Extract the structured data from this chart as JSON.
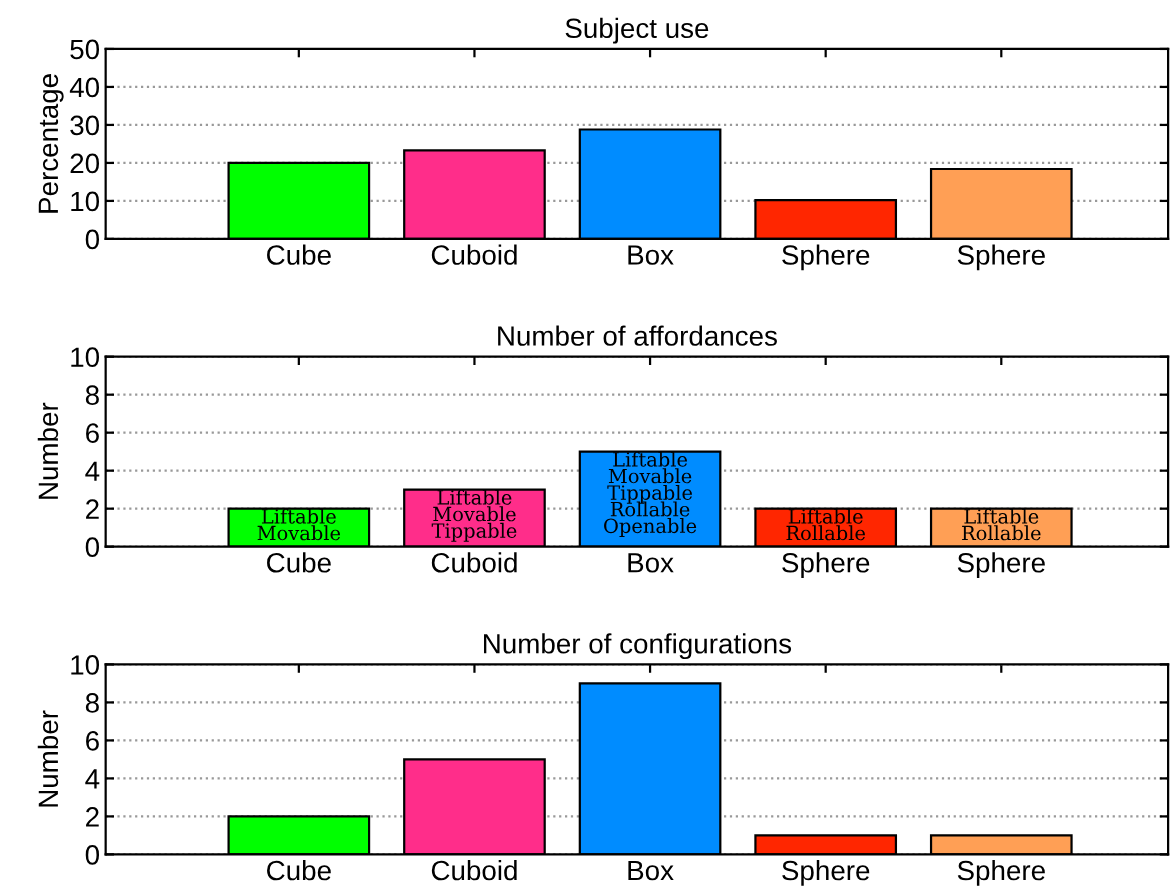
{
  "chart_data": [
    {
      "type": "bar",
      "title": "Subject use",
      "ylabel": "Percentage",
      "categories": [
        "Cube",
        "Cuboid",
        "Box",
        "Sphere",
        "Sphere"
      ],
      "values": [
        20,
        23.3,
        28.8,
        10.2,
        18.4
      ],
      "colors": [
        "#00ff00",
        "#ff2d8a",
        "#008cff",
        "#ff2600",
        "#ff9f55"
      ],
      "ylim": [
        0,
        50
      ],
      "yticks": [
        0,
        10,
        20,
        30,
        40,
        50
      ],
      "grid": "y"
    },
    {
      "type": "bar",
      "title": "Number of affordances",
      "ylabel": "Number",
      "categories": [
        "Cube",
        "Cuboid",
        "Box",
        "Sphere",
        "Sphere"
      ],
      "values": [
        2,
        3,
        5,
        2,
        2
      ],
      "colors": [
        "#00ff00",
        "#ff2d8a",
        "#008cff",
        "#ff2600",
        "#ff9f55"
      ],
      "value_labels": [
        "Liftable\nMovable",
        "Liftable\nMovable\nTippable",
        "Liftable\nMovable\nTippable\nRollable\nOpenable",
        "Liftable\nRollable",
        "Liftable\nRollable"
      ],
      "ylim": [
        0,
        10
      ],
      "yticks": [
        0,
        2,
        4,
        6,
        8,
        10
      ],
      "grid": "y"
    },
    {
      "type": "bar",
      "title": "Number of configurations",
      "ylabel": "Number",
      "categories": [
        "Cube",
        "Cuboid",
        "Box",
        "Sphere",
        "Sphere"
      ],
      "values": [
        2,
        5,
        9,
        1,
        1
      ],
      "colors": [
        "#00ff00",
        "#ff2d8a",
        "#008cff",
        "#ff2600",
        "#ff9f55"
      ],
      "ylim": [
        0,
        10
      ],
      "yticks": [
        0,
        2,
        4,
        6,
        8,
        10
      ],
      "grid": "y"
    }
  ]
}
